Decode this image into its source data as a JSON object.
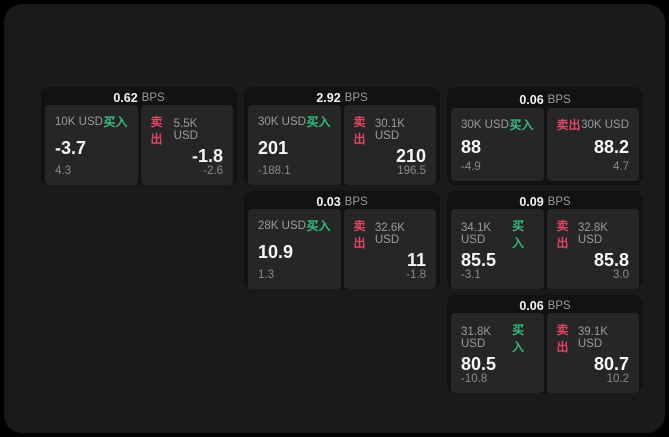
{
  "labels": {
    "bps_unit": "BPS",
    "buy": "买入",
    "sell": "卖出"
  },
  "colors": {
    "background": "#000000",
    "panel": "#1a1a1a",
    "card": "#121212",
    "side_panel": "#262626",
    "buy_accent": "#33bd7e",
    "sell_accent": "#df4661"
  },
  "cards": [
    {
      "bps": "0.62",
      "buy": {
        "size": "10K USD",
        "price": "-3.7",
        "sub": "4.3"
      },
      "sell": {
        "size": "5.5K USD",
        "price": "-1.8",
        "sub": "-2.6"
      }
    },
    {
      "bps": "2.92",
      "buy": {
        "size": "30K USD",
        "price": "201",
        "sub": "-188.1"
      },
      "sell": {
        "size": "30.1K USD",
        "price": "210",
        "sub": "196.5"
      }
    },
    {
      "bps": "0.06",
      "buy": {
        "size": "30K USD",
        "price": "88",
        "sub": "-4.9"
      },
      "sell": {
        "size": "30K USD",
        "price": "88.2",
        "sub": "4.7"
      }
    },
    {
      "bps": "0.03",
      "buy": {
        "size": "28K USD",
        "price": "10.9",
        "sub": "1.3"
      },
      "sell": {
        "size": "32.6K USD",
        "price": "11",
        "sub": "-1.8"
      }
    },
    {
      "bps": "0.09",
      "buy": {
        "size": "34.1K USD",
        "price": "85.5",
        "sub": "-3.1"
      },
      "sell": {
        "size": "32.8K USD",
        "price": "85.8",
        "sub": "3.0"
      }
    },
    {
      "bps": "0.06",
      "buy": {
        "size": "31.8K USD",
        "price": "80.5",
        "sub": "-10.8"
      },
      "sell": {
        "size": "39.1K USD",
        "price": "80.7",
        "sub": "10.2"
      }
    }
  ]
}
